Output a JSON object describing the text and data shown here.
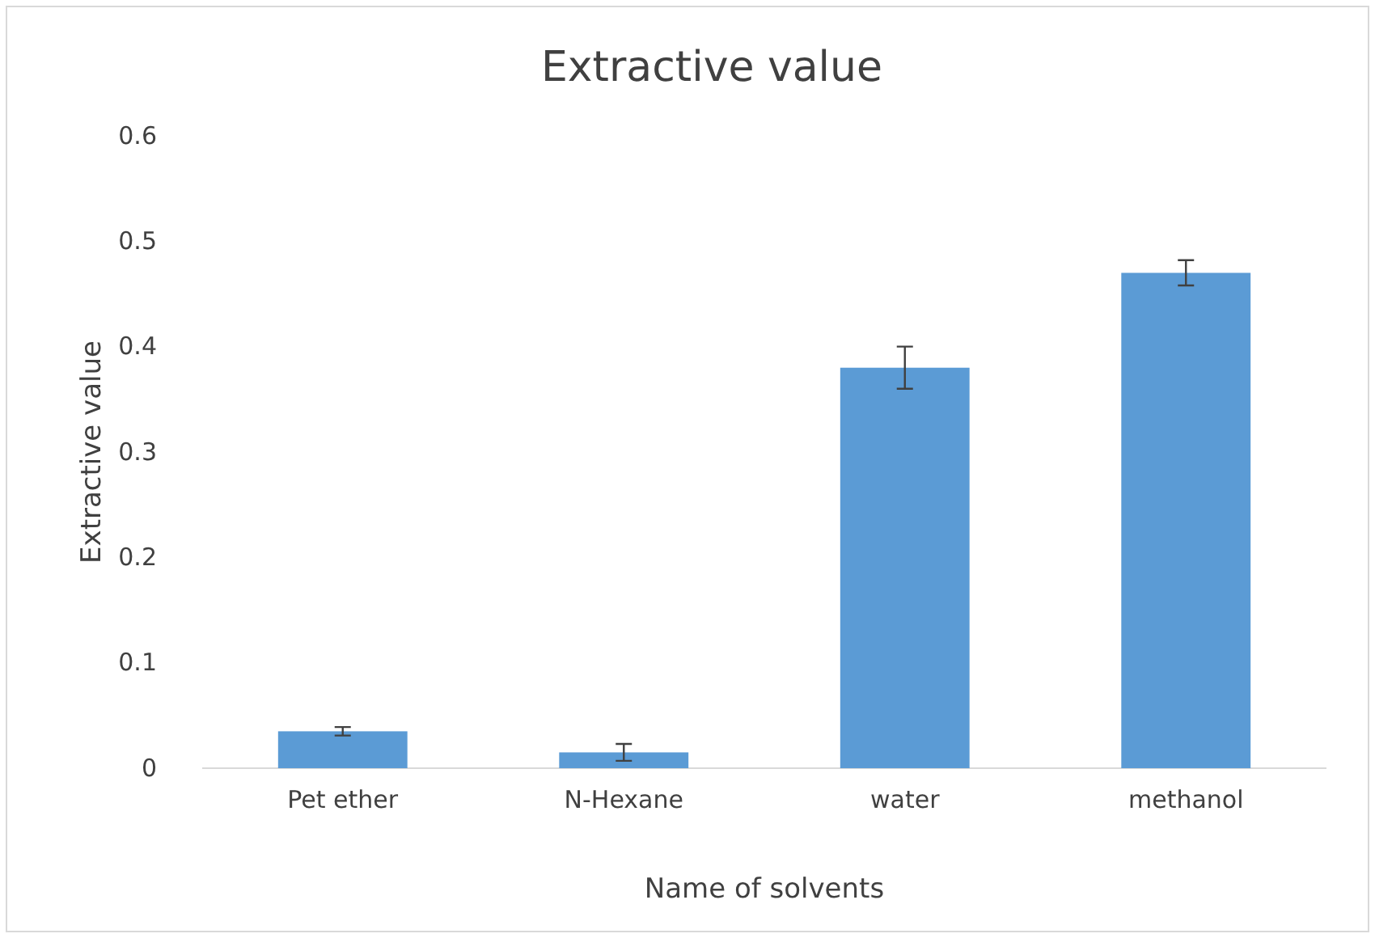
{
  "chart_data": {
    "type": "bar",
    "title": "Extractive value",
    "xlabel": "Name of solvents",
    "ylabel": "Extractive value",
    "categories": [
      "Pet ether",
      "N-Hexane",
      "water",
      "methanol"
    ],
    "values": [
      0.035,
      0.015,
      0.38,
      0.47
    ],
    "errors": [
      0.004,
      0.008,
      0.02,
      0.012
    ],
    "color": "#5b9bd5",
    "ylim": [
      0,
      0.6
    ],
    "yticks": [
      0,
      0.1,
      0.2,
      0.3,
      0.4,
      0.5,
      0.6
    ],
    "grid": false
  }
}
